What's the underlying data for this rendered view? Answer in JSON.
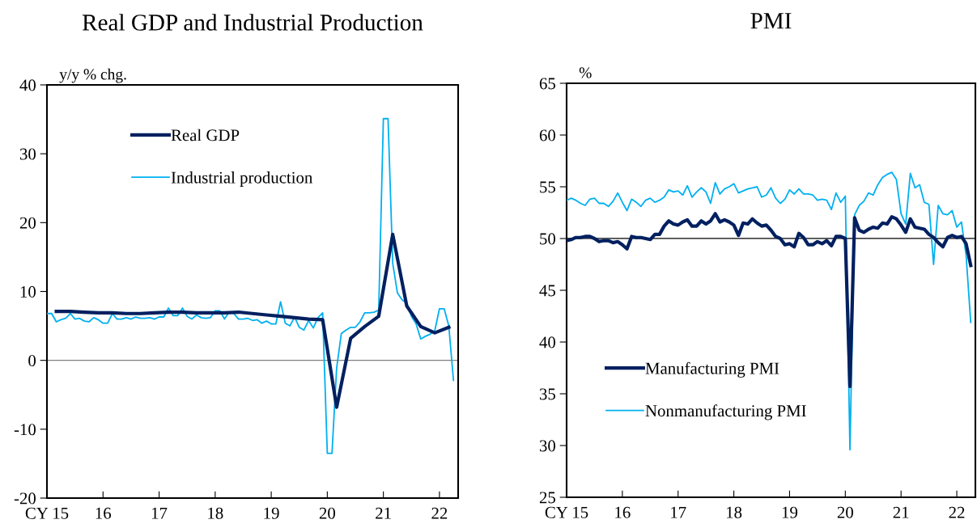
{
  "chart_data": [
    {
      "type": "line",
      "title": "Real GDP and Industrial Production",
      "ylabel": "y/y % chg.",
      "x": [
        "2015-01",
        "2015-02",
        "2015-03",
        "2015-04",
        "2015-05",
        "2015-06",
        "2015-07",
        "2015-08",
        "2015-09",
        "2015-10",
        "2015-11",
        "2015-12",
        "2016-01",
        "2016-02",
        "2016-03",
        "2016-04",
        "2016-05",
        "2016-06",
        "2016-07",
        "2016-08",
        "2016-09",
        "2016-10",
        "2016-11",
        "2016-12",
        "2017-01",
        "2017-02",
        "2017-03",
        "2017-04",
        "2017-05",
        "2017-06",
        "2017-07",
        "2017-08",
        "2017-09",
        "2017-10",
        "2017-11",
        "2017-12",
        "2018-01",
        "2018-02",
        "2018-03",
        "2018-04",
        "2018-05",
        "2018-06",
        "2018-07",
        "2018-08",
        "2018-09",
        "2018-10",
        "2018-11",
        "2018-12",
        "2019-01",
        "2019-02",
        "2019-03",
        "2019-04",
        "2019-05",
        "2019-06",
        "2019-07",
        "2019-08",
        "2019-09",
        "2019-10",
        "2019-11",
        "2019-12",
        "2020-01",
        "2020-02",
        "2020-03",
        "2020-04",
        "2020-05",
        "2020-06",
        "2020-07",
        "2020-08",
        "2020-09",
        "2020-10",
        "2020-11",
        "2020-12",
        "2021-01",
        "2021-02",
        "2021-03",
        "2021-04",
        "2021-05",
        "2021-06",
        "2021-07",
        "2021-08",
        "2021-09",
        "2021-10",
        "2021-11",
        "2021-12",
        "2022-01",
        "2022-02",
        "2022-03",
        "2022-04"
      ],
      "series": [
        {
          "name": "Real GDP",
          "color": "#002060",
          "x": [
            "2015-03",
            "2015-06",
            "2015-09",
            "2015-12",
            "2016-03",
            "2016-06",
            "2016-09",
            "2016-12",
            "2017-03",
            "2017-06",
            "2017-09",
            "2017-12",
            "2018-03",
            "2018-06",
            "2018-09",
            "2018-12",
            "2019-03",
            "2019-06",
            "2019-09",
            "2019-12",
            "2020-03",
            "2020-06",
            "2020-09",
            "2020-12",
            "2021-03",
            "2021-06",
            "2021-09",
            "2021-12",
            "2022-03"
          ],
          "values": [
            7.1,
            7.1,
            7.0,
            6.9,
            6.9,
            6.8,
            6.8,
            6.9,
            7.0,
            7.0,
            6.9,
            6.9,
            6.9,
            7.0,
            6.8,
            6.6,
            6.4,
            6.2,
            6.0,
            5.9,
            -6.8,
            3.2,
            4.9,
            6.4,
            18.3,
            7.9,
            4.9,
            4.0,
            4.8
          ]
        },
        {
          "name": "Industrial production",
          "color": "#00b0f0",
          "values": [
            6.8,
            6.8,
            5.6,
            5.9,
            6.1,
            6.8,
            6.0,
            6.1,
            5.7,
            5.6,
            6.2,
            5.9,
            5.4,
            5.4,
            6.8,
            6.0,
            6.0,
            6.2,
            6.0,
            6.3,
            6.1,
            6.1,
            6.2,
            6.0,
            6.3,
            6.3,
            7.6,
            6.5,
            6.5,
            7.6,
            6.4,
            6.0,
            6.6,
            6.2,
            6.1,
            6.2,
            7.2,
            7.2,
            6.0,
            7.0,
            6.8,
            6.0,
            6.0,
            6.1,
            5.8,
            5.9,
            5.4,
            5.7,
            5.3,
            5.3,
            8.5,
            5.4,
            5.0,
            6.3,
            4.8,
            4.4,
            5.8,
            4.7,
            6.2,
            6.9,
            -13.5,
            -13.5,
            -1.1,
            3.9,
            4.4,
            4.8,
            4.8,
            5.6,
            6.9,
            6.9,
            7.0,
            7.3,
            35.1,
            35.1,
            14.1,
            9.8,
            8.8,
            8.3,
            6.4,
            5.3,
            3.1,
            3.5,
            3.8,
            4.3,
            7.5,
            7.5,
            5.0,
            -2.9
          ]
        }
      ],
      "xlim": [
        "2015-01",
        "2022-05"
      ],
      "xticks": [
        {
          "value": "2015-01",
          "label": "CY 15"
        },
        {
          "value": "2016-01",
          "label": "16"
        },
        {
          "value": "2017-01",
          "label": "17"
        },
        {
          "value": "2018-01",
          "label": "18"
        },
        {
          "value": "2019-01",
          "label": "19"
        },
        {
          "value": "2020-01",
          "label": "20"
        },
        {
          "value": "2021-01",
          "label": "21"
        },
        {
          "value": "2022-01",
          "label": "22"
        }
      ],
      "ylim": [
        -20,
        40
      ],
      "yticks": [
        -20,
        -10,
        0,
        10,
        20,
        30,
        40
      ],
      "ref_lines": [
        {
          "axis": "y",
          "value": 0,
          "color": "#808080"
        }
      ],
      "legend": "top left"
    },
    {
      "type": "line",
      "title": "PMI",
      "ylabel": "%",
      "x": [
        "2015-01",
        "2015-02",
        "2015-03",
        "2015-04",
        "2015-05",
        "2015-06",
        "2015-07",
        "2015-08",
        "2015-09",
        "2015-10",
        "2015-11",
        "2015-12",
        "2016-01",
        "2016-02",
        "2016-03",
        "2016-04",
        "2016-05",
        "2016-06",
        "2016-07",
        "2016-08",
        "2016-09",
        "2016-10",
        "2016-11",
        "2016-12",
        "2017-01",
        "2017-02",
        "2017-03",
        "2017-04",
        "2017-05",
        "2017-06",
        "2017-07",
        "2017-08",
        "2017-09",
        "2017-10",
        "2017-11",
        "2017-12",
        "2018-01",
        "2018-02",
        "2018-03",
        "2018-04",
        "2018-05",
        "2018-06",
        "2018-07",
        "2018-08",
        "2018-09",
        "2018-10",
        "2018-11",
        "2018-12",
        "2019-01",
        "2019-02",
        "2019-03",
        "2019-04",
        "2019-05",
        "2019-06",
        "2019-07",
        "2019-08",
        "2019-09",
        "2019-10",
        "2019-11",
        "2019-12",
        "2020-01",
        "2020-02",
        "2020-03",
        "2020-04",
        "2020-05",
        "2020-06",
        "2020-07",
        "2020-08",
        "2020-09",
        "2020-10",
        "2020-11",
        "2020-12",
        "2021-01",
        "2021-02",
        "2021-03",
        "2021-04",
        "2021-05",
        "2021-06",
        "2021-07",
        "2021-08",
        "2021-09",
        "2021-10",
        "2021-11",
        "2021-12",
        "2022-01",
        "2022-02",
        "2022-03",
        "2022-04"
      ],
      "series": [
        {
          "name": "Manufacturing PMI",
          "color": "#002060",
          "values": [
            49.8,
            49.9,
            50.1,
            50.1,
            50.2,
            50.2,
            50.0,
            49.7,
            49.8,
            49.8,
            49.6,
            49.7,
            49.4,
            49.0,
            50.2,
            50.1,
            50.1,
            50.0,
            49.9,
            50.4,
            50.4,
            51.2,
            51.7,
            51.4,
            51.3,
            51.6,
            51.8,
            51.2,
            51.2,
            51.7,
            51.4,
            51.7,
            52.4,
            51.6,
            51.8,
            51.6,
            51.3,
            50.3,
            51.5,
            51.4,
            51.9,
            51.5,
            51.2,
            51.3,
            50.8,
            50.2,
            50.0,
            49.4,
            49.5,
            49.2,
            50.5,
            50.1,
            49.4,
            49.4,
            49.7,
            49.5,
            49.8,
            49.3,
            50.2,
            50.2,
            50.0,
            35.7,
            52.0,
            50.8,
            50.6,
            50.9,
            51.1,
            51.0,
            51.5,
            51.4,
            52.1,
            51.9,
            51.3,
            50.6,
            51.9,
            51.1,
            51.0,
            50.9,
            50.4,
            50.1,
            49.6,
            49.2,
            50.1,
            50.3,
            50.1,
            50.2,
            49.5,
            47.4
          ]
        },
        {
          "name": "Nonmanufacturing PMI",
          "color": "#00b0f0",
          "values": [
            53.7,
            53.9,
            53.7,
            53.4,
            53.2,
            53.8,
            53.9,
            53.4,
            53.4,
            53.1,
            53.6,
            54.4,
            53.5,
            52.7,
            53.8,
            53.5,
            53.1,
            53.7,
            53.9,
            53.5,
            53.7,
            54.0,
            54.7,
            54.5,
            54.6,
            54.2,
            55.1,
            54.0,
            54.5,
            54.9,
            54.5,
            53.4,
            55.4,
            54.3,
            54.8,
            55.0,
            55.3,
            54.4,
            54.6,
            54.8,
            54.9,
            55.0,
            54.0,
            54.2,
            54.9,
            53.9,
            53.4,
            53.8,
            54.7,
            54.3,
            54.8,
            54.3,
            54.3,
            54.2,
            53.7,
            53.8,
            53.7,
            52.8,
            54.4,
            53.5,
            54.1,
            29.6,
            52.3,
            53.2,
            53.6,
            54.4,
            54.2,
            55.2,
            55.9,
            56.2,
            56.4,
            55.7,
            52.4,
            51.4,
            56.3,
            54.9,
            55.2,
            53.5,
            53.3,
            47.5,
            53.2,
            52.4,
            52.3,
            52.7,
            51.1,
            51.6,
            48.4,
            41.9
          ]
        }
      ],
      "xlim": [
        "2015-01",
        "2022-05"
      ],
      "xticks": [
        {
          "value": "2015-01",
          "label": "CY 15"
        },
        {
          "value": "2016-01",
          "label": "16"
        },
        {
          "value": "2017-01",
          "label": "17"
        },
        {
          "value": "2018-01",
          "label": "18"
        },
        {
          "value": "2019-01",
          "label": "19"
        },
        {
          "value": "2020-01",
          "label": "20"
        },
        {
          "value": "2021-01",
          "label": "21"
        },
        {
          "value": "2022-01",
          "label": "22"
        }
      ],
      "ylim": [
        25,
        65
      ],
      "yticks": [
        25,
        30,
        35,
        40,
        45,
        50,
        55,
        60,
        65
      ],
      "ref_lines": [
        {
          "axis": "y",
          "value": 50,
          "color": "#000000"
        }
      ],
      "legend": "bottom left"
    }
  ]
}
